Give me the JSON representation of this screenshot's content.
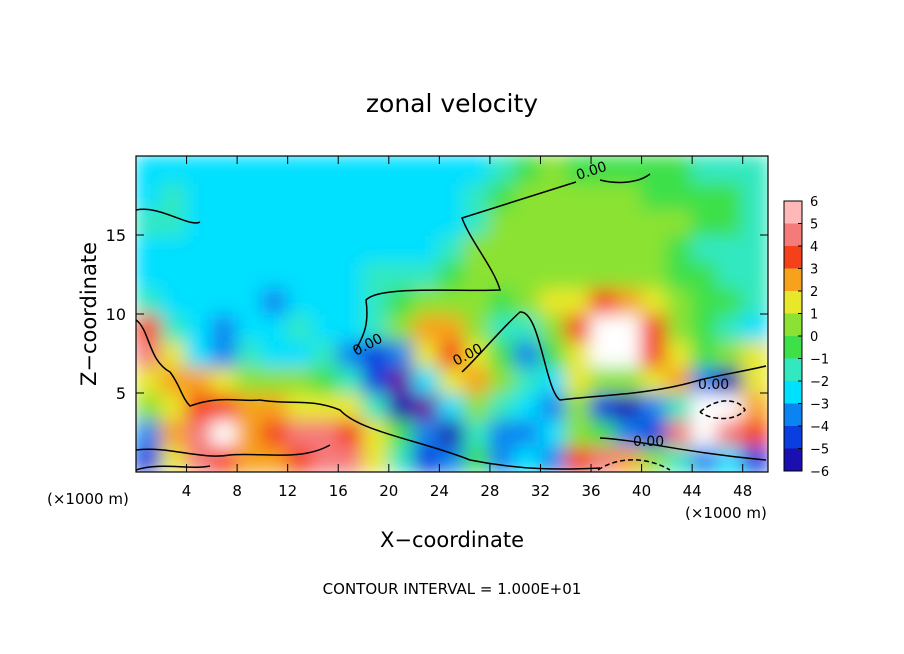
{
  "chart_data": {
    "type": "heatmap",
    "title": "zonal velocity",
    "xlabel": "X−coordinate",
    "ylabel": "Z−coordinate",
    "x_unit_left": "(×1000 m)",
    "x_unit_right": "(×1000 m)",
    "footer": "CONTOUR INTERVAL = 1.000E+01",
    "xlim": [
      0,
      50
    ],
    "ylim": [
      0,
      20
    ],
    "x_ticks": [
      4,
      8,
      12,
      16,
      20,
      24,
      28,
      32,
      36,
      40,
      44,
      48
    ],
    "y_ticks": [
      5,
      10,
      15
    ],
    "colorbar": {
      "range": [
        -6,
        6
      ],
      "ticks": [
        6,
        5,
        4,
        3,
        2,
        1,
        0,
        -1,
        -2,
        -3,
        -4,
        -5,
        -6
      ],
      "colors": [
        "#6b0f9e",
        "#1a0fb0",
        "#0a3ee0",
        "#0a84f0",
        "#00e0ff",
        "#31e8c0",
        "#3ee04a",
        "#8be233",
        "#e8e82a",
        "#f7a21c",
        "#f5401c",
        "#f57a7a",
        "#ffb8b8"
      ]
    },
    "contour_labels": [
      "0.00",
      "0.00",
      "0.00",
      "0.00",
      "0.00"
    ],
    "field": [
      [
        -4,
        2,
        5,
        4,
        3,
        3,
        4,
        5,
        5,
        2,
        -1,
        -4,
        -3,
        0,
        -3,
        -2,
        -3,
        4,
        5,
        3,
        1,
        -1,
        -3,
        -2,
        -4
      ],
      [
        -3,
        3,
        5,
        6,
        3,
        4,
        5,
        5,
        4,
        2,
        0,
        -3,
        -5,
        -1,
        -3,
        -3,
        -2,
        1,
        0,
        -3,
        -4,
        5,
        6,
        5,
        4
      ],
      [
        1,
        2,
        4,
        4,
        3,
        3,
        2,
        2,
        2,
        -1,
        -5,
        -6,
        -2,
        1,
        -1,
        -2,
        -3,
        1,
        -4,
        -5,
        -3,
        -1,
        6,
        6,
        3
      ],
      [
        2,
        3,
        3,
        2,
        1,
        1,
        1,
        0,
        -1,
        -4,
        -6,
        -2,
        2,
        3,
        1,
        -1,
        -2,
        2,
        1,
        1,
        2,
        3,
        -3,
        -5,
        2
      ],
      [
        5,
        2,
        -2,
        -3,
        -1,
        -2,
        -2,
        -1,
        -3,
        -4,
        -3,
        2,
        4,
        2,
        0,
        -3,
        0,
        2,
        6,
        6,
        4,
        2,
        0,
        1,
        2
      ],
      [
        4,
        -1,
        -2,
        -3,
        -2,
        -2,
        -1,
        -2,
        -2,
        -1,
        1,
        3,
        3,
        1,
        -1,
        -1,
        1,
        4,
        6,
        6,
        4,
        1,
        0,
        -1,
        -2
      ],
      [
        -1,
        -2,
        -2,
        -2,
        -2,
        -3,
        -2,
        -2,
        -2,
        -1,
        0,
        1,
        1,
        1,
        0,
        1,
        2,
        2,
        4,
        3,
        2,
        1,
        0,
        0,
        -1
      ],
      [
        -2,
        -2,
        -2,
        -2,
        -2,
        -2,
        -2,
        -2,
        -2,
        -1,
        -1,
        -1,
        0,
        1,
        1,
        1,
        1,
        1,
        1,
        1,
        1,
        0,
        0,
        -1,
        -1
      ],
      [
        -2,
        -2,
        -2,
        -2,
        -2,
        -2,
        -2,
        -2,
        -2,
        -2,
        -2,
        -2,
        -1,
        1,
        1,
        1,
        1,
        1,
        1,
        1,
        1,
        0,
        -1,
        -1,
        -1
      ],
      [
        -1,
        -1,
        -2,
        -2,
        -2,
        -2,
        -2,
        -2,
        -2,
        -2,
        -2,
        -2,
        -2,
        -1,
        1,
        1,
        1,
        1,
        1,
        1,
        1,
        1,
        0,
        0,
        -1
      ],
      [
        -2,
        -1,
        -2,
        -2,
        -2,
        -2,
        -2,
        -2,
        -2,
        -2,
        -2,
        -2,
        -2,
        -1,
        0,
        1,
        1,
        1,
        1,
        1,
        0,
        0,
        0,
        0,
        -1
      ],
      [
        -2,
        -2,
        -2,
        -2,
        -2,
        -2,
        -2,
        -2,
        -2,
        -2,
        -2,
        -2,
        -2,
        -2,
        -1,
        0,
        1,
        0,
        0,
        0,
        0,
        0,
        -1,
        -1,
        -1
      ]
    ]
  }
}
